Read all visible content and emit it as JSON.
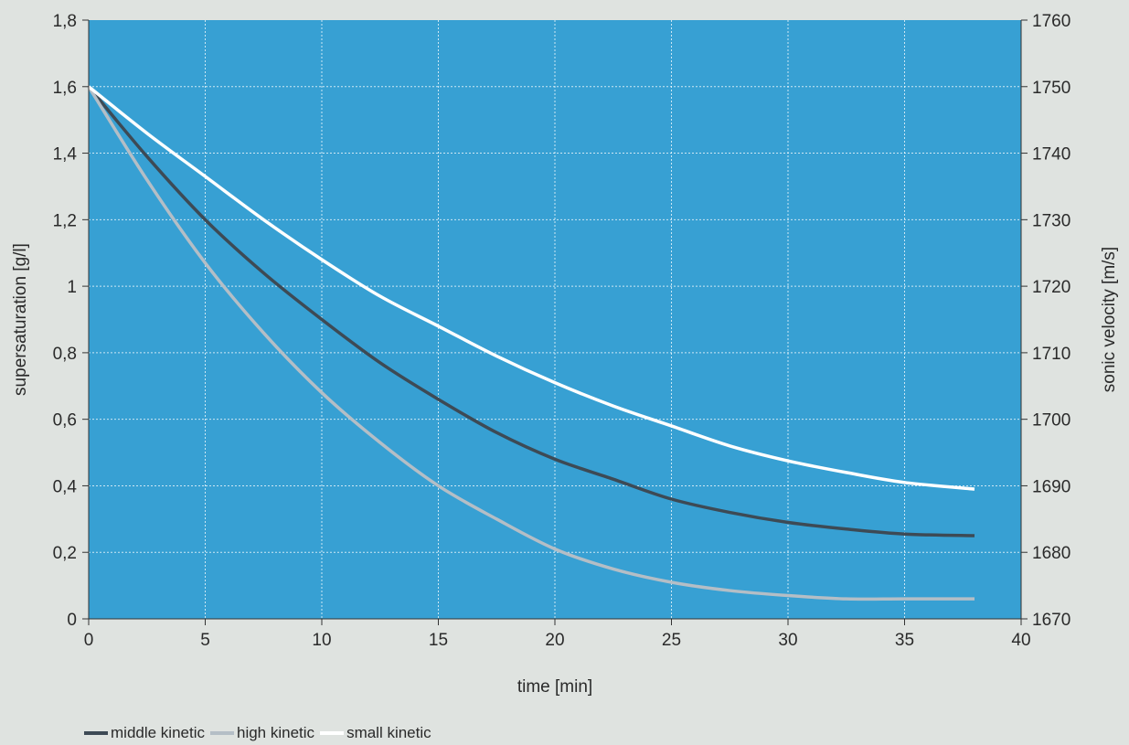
{
  "chart_data": {
    "type": "line",
    "xlabel": "time [min]",
    "ylabel": "supersaturation [g/l]",
    "ylabel_right": "sonic velocity [m/s]",
    "xlim": [
      0,
      40
    ],
    "ylim": [
      0,
      1.8
    ],
    "ylim_right": [
      1670,
      1760
    ],
    "x_ticks": [
      "0",
      "5",
      "10",
      "15",
      "20",
      "25",
      "30",
      "35",
      "40"
    ],
    "y_ticks": [
      "0",
      "0,2",
      "0,4",
      "0,6",
      "0,8",
      "1",
      "1,2",
      "1,4",
      "1,6",
      "1,8"
    ],
    "y_ticks_right": [
      "1670",
      "1680",
      "1690",
      "1700",
      "1710",
      "1720",
      "1730",
      "1740",
      "1750",
      "1760"
    ],
    "grid": true,
    "legend_position": "bottom-left",
    "background_color": "#37a0d3",
    "series": [
      {
        "name": "middle kinetic",
        "color": "#3d4a55",
        "x": [
          0,
          2.5,
          5,
          7.5,
          10,
          12.5,
          15,
          17.5,
          20,
          22.5,
          25,
          27.5,
          30,
          32.5,
          35,
          38
        ],
        "values": [
          1.6,
          1.39,
          1.2,
          1.04,
          0.9,
          0.77,
          0.66,
          0.56,
          0.48,
          0.42,
          0.36,
          0.32,
          0.29,
          0.27,
          0.255,
          0.25
        ]
      },
      {
        "name": "high kinetic",
        "color": "#b4bec6",
        "x": [
          0,
          2.5,
          5,
          7.5,
          10,
          12.5,
          15,
          17.5,
          20,
          22.5,
          25,
          27.5,
          30,
          32.5,
          35,
          38
        ],
        "values": [
          1.6,
          1.32,
          1.07,
          0.86,
          0.68,
          0.53,
          0.4,
          0.3,
          0.21,
          0.15,
          0.11,
          0.085,
          0.07,
          0.06,
          0.06,
          0.06
        ]
      },
      {
        "name": "small kinetic",
        "color": "#ffffff",
        "x": [
          0,
          2.5,
          5,
          7.5,
          10,
          12.5,
          15,
          17.5,
          20,
          22.5,
          25,
          27.5,
          30,
          32.5,
          35,
          38
        ],
        "values": [
          1.6,
          1.46,
          1.33,
          1.2,
          1.08,
          0.97,
          0.88,
          0.79,
          0.71,
          0.64,
          0.58,
          0.52,
          0.475,
          0.44,
          0.41,
          0.39
        ]
      }
    ]
  }
}
